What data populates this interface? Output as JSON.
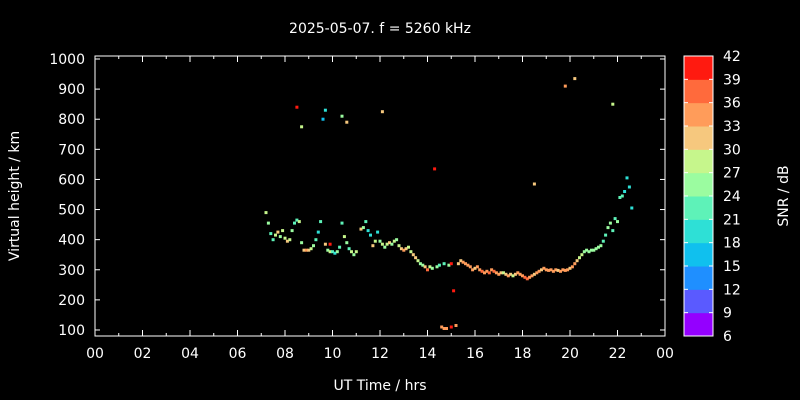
{
  "chart_data": {
    "type": "scatter",
    "title": "2025-05-07. f = 5260 kHz",
    "xlabel": "UT Time / hrs",
    "ylabel": "Virtual height / km",
    "colorbar_label": "SNR / dB",
    "xlim": [
      0,
      24
    ],
    "ylim": [
      80,
      1010
    ],
    "x_ticks": [
      "00",
      "02",
      "04",
      "06",
      "08",
      "10",
      "12",
      "14",
      "16",
      "18",
      "20",
      "22",
      "00"
    ],
    "y_ticks": [
      100,
      200,
      300,
      400,
      500,
      600,
      700,
      800,
      900,
      1000
    ],
    "color_range": [
      6,
      42
    ],
    "colorbar_ticks": [
      6,
      9,
      12,
      15,
      18,
      21,
      24,
      27,
      30,
      33,
      36,
      39,
      42
    ],
    "colorbar_colors": [
      "#9400ff",
      "#5a5aff",
      "#1f8fff",
      "#10c0ee",
      "#2ee0d6",
      "#5ef2b8",
      "#9bfca0",
      "#c6f68c",
      "#f6c87e",
      "#ff9c5a",
      "#ff6a3c",
      "#ff1a10"
    ],
    "grid": false,
    "points": [
      {
        "x": 7.2,
        "y": 490,
        "snr": 27
      },
      {
        "x": 7.3,
        "y": 455,
        "snr": 24
      },
      {
        "x": 7.4,
        "y": 420,
        "snr": 21
      },
      {
        "x": 7.5,
        "y": 400,
        "snr": 22
      },
      {
        "x": 7.6,
        "y": 415,
        "snr": 27
      },
      {
        "x": 7.7,
        "y": 425,
        "snr": 30
      },
      {
        "x": 7.8,
        "y": 410,
        "snr": 24
      },
      {
        "x": 7.9,
        "y": 430,
        "snr": 28
      },
      {
        "x": 8.0,
        "y": 405,
        "snr": 27
      },
      {
        "x": 8.1,
        "y": 395,
        "snr": 30
      },
      {
        "x": 8.2,
        "y": 400,
        "snr": 28
      },
      {
        "x": 8.3,
        "y": 430,
        "snr": 24
      },
      {
        "x": 8.4,
        "y": 455,
        "snr": 21
      },
      {
        "x": 8.5,
        "y": 465,
        "snr": 21
      },
      {
        "x": 8.6,
        "y": 460,
        "snr": 27
      },
      {
        "x": 8.7,
        "y": 390,
        "snr": 24
      },
      {
        "x": 8.8,
        "y": 365,
        "snr": 30
      },
      {
        "x": 8.9,
        "y": 365,
        "snr": 33
      },
      {
        "x": 9.0,
        "y": 365,
        "snr": 30
      },
      {
        "x": 9.1,
        "y": 370,
        "snr": 27
      },
      {
        "x": 9.2,
        "y": 380,
        "snr": 24
      },
      {
        "x": 9.3,
        "y": 400,
        "snr": 21
      },
      {
        "x": 9.4,
        "y": 425,
        "snr": 18
      },
      {
        "x": 9.5,
        "y": 460,
        "snr": 21
      },
      {
        "x": 9.7,
        "y": 385,
        "snr": 30
      },
      {
        "x": 9.8,
        "y": 365,
        "snr": 24
      },
      {
        "x": 9.9,
        "y": 360,
        "snr": 27
      },
      {
        "x": 10.0,
        "y": 360,
        "snr": 21
      },
      {
        "x": 10.1,
        "y": 355,
        "snr": 18
      },
      {
        "x": 10.2,
        "y": 360,
        "snr": 24
      },
      {
        "x": 10.3,
        "y": 375,
        "snr": 21
      },
      {
        "x": 10.4,
        "y": 455,
        "snr": 21
      },
      {
        "x": 10.5,
        "y": 410,
        "snr": 27
      },
      {
        "x": 10.6,
        "y": 390,
        "snr": 24
      },
      {
        "x": 10.7,
        "y": 370,
        "snr": 21
      },
      {
        "x": 10.8,
        "y": 360,
        "snr": 27
      },
      {
        "x": 10.9,
        "y": 350,
        "snr": 24
      },
      {
        "x": 11.0,
        "y": 360,
        "snr": 27
      },
      {
        "x": 11.2,
        "y": 435,
        "snr": 30
      },
      {
        "x": 11.3,
        "y": 440,
        "snr": 24
      },
      {
        "x": 11.4,
        "y": 460,
        "snr": 21
      },
      {
        "x": 11.5,
        "y": 430,
        "snr": 18
      },
      {
        "x": 11.6,
        "y": 415,
        "snr": 18
      },
      {
        "x": 11.7,
        "y": 380,
        "snr": 30
      },
      {
        "x": 11.8,
        "y": 395,
        "snr": 27
      },
      {
        "x": 11.9,
        "y": 425,
        "snr": 18
      },
      {
        "x": 12.0,
        "y": 395,
        "snr": 24
      },
      {
        "x": 12.1,
        "y": 385,
        "snr": 27
      },
      {
        "x": 12.2,
        "y": 375,
        "snr": 24
      },
      {
        "x": 12.3,
        "y": 385,
        "snr": 27
      },
      {
        "x": 12.4,
        "y": 390,
        "snr": 30
      },
      {
        "x": 12.5,
        "y": 385,
        "snr": 24
      },
      {
        "x": 12.6,
        "y": 395,
        "snr": 27
      },
      {
        "x": 12.7,
        "y": 400,
        "snr": 24
      },
      {
        "x": 12.8,
        "y": 380,
        "snr": 27
      },
      {
        "x": 12.9,
        "y": 370,
        "snr": 30
      },
      {
        "x": 13.0,
        "y": 365,
        "snr": 33
      },
      {
        "x": 13.1,
        "y": 370,
        "snr": 30
      },
      {
        "x": 13.2,
        "y": 375,
        "snr": 27
      },
      {
        "x": 13.3,
        "y": 360,
        "snr": 27
      },
      {
        "x": 13.4,
        "y": 350,
        "snr": 30
      },
      {
        "x": 13.5,
        "y": 340,
        "snr": 30
      },
      {
        "x": 13.6,
        "y": 330,
        "snr": 27
      },
      {
        "x": 13.7,
        "y": 320,
        "snr": 24
      },
      {
        "x": 13.8,
        "y": 315,
        "snr": 24
      },
      {
        "x": 13.9,
        "y": 310,
        "snr": 30
      },
      {
        "x": 14.0,
        "y": 300,
        "snr": 36
      },
      {
        "x": 14.1,
        "y": 310,
        "snr": 27
      },
      {
        "x": 14.2,
        "y": 305,
        "snr": 24
      },
      {
        "x": 14.4,
        "y": 310,
        "snr": 24
      },
      {
        "x": 14.5,
        "y": 315,
        "snr": 21
      },
      {
        "x": 14.7,
        "y": 320,
        "snr": 21
      },
      {
        "x": 14.9,
        "y": 315,
        "snr": 24
      },
      {
        "x": 15.3,
        "y": 320,
        "snr": 30
      },
      {
        "x": 15.4,
        "y": 330,
        "snr": 30
      },
      {
        "x": 15.5,
        "y": 325,
        "snr": 33
      },
      {
        "x": 15.6,
        "y": 320,
        "snr": 33
      },
      {
        "x": 15.7,
        "y": 315,
        "snr": 33
      },
      {
        "x": 15.8,
        "y": 310,
        "snr": 33
      },
      {
        "x": 15.9,
        "y": 300,
        "snr": 33
      },
      {
        "x": 16.0,
        "y": 305,
        "snr": 30
      },
      {
        "x": 16.1,
        "y": 310,
        "snr": 33
      },
      {
        "x": 16.2,
        "y": 300,
        "snr": 33
      },
      {
        "x": 16.3,
        "y": 295,
        "snr": 36
      },
      {
        "x": 16.4,
        "y": 290,
        "snr": 33
      },
      {
        "x": 16.5,
        "y": 295,
        "snr": 33
      },
      {
        "x": 16.6,
        "y": 290,
        "snr": 36
      },
      {
        "x": 16.7,
        "y": 300,
        "snr": 33
      },
      {
        "x": 16.8,
        "y": 295,
        "snr": 36
      },
      {
        "x": 16.9,
        "y": 290,
        "snr": 33
      },
      {
        "x": 17.0,
        "y": 285,
        "snr": 33
      },
      {
        "x": 17.1,
        "y": 290,
        "snr": 30
      },
      {
        "x": 17.2,
        "y": 290,
        "snr": 27
      },
      {
        "x": 17.3,
        "y": 285,
        "snr": 30
      },
      {
        "x": 17.4,
        "y": 280,
        "snr": 33
      },
      {
        "x": 17.5,
        "y": 285,
        "snr": 30
      },
      {
        "x": 17.6,
        "y": 280,
        "snr": 27
      },
      {
        "x": 17.7,
        "y": 285,
        "snr": 30
      },
      {
        "x": 17.8,
        "y": 290,
        "snr": 33
      },
      {
        "x": 17.9,
        "y": 285,
        "snr": 33
      },
      {
        "x": 18.0,
        "y": 280,
        "snr": 33
      },
      {
        "x": 18.1,
        "y": 275,
        "snr": 36
      },
      {
        "x": 18.2,
        "y": 270,
        "snr": 36
      },
      {
        "x": 18.3,
        "y": 275,
        "snr": 33
      },
      {
        "x": 18.4,
        "y": 280,
        "snr": 33
      },
      {
        "x": 18.5,
        "y": 285,
        "snr": 30
      },
      {
        "x": 18.6,
        "y": 290,
        "snr": 33
      },
      {
        "x": 18.7,
        "y": 295,
        "snr": 33
      },
      {
        "x": 18.8,
        "y": 300,
        "snr": 30
      },
      {
        "x": 18.9,
        "y": 305,
        "snr": 33
      },
      {
        "x": 19.0,
        "y": 300,
        "snr": 33
      },
      {
        "x": 19.1,
        "y": 298,
        "snr": 33
      },
      {
        "x": 19.2,
        "y": 300,
        "snr": 33
      },
      {
        "x": 19.3,
        "y": 295,
        "snr": 33
      },
      {
        "x": 19.4,
        "y": 300,
        "snr": 33
      },
      {
        "x": 19.5,
        "y": 298,
        "snr": 30
      },
      {
        "x": 19.6,
        "y": 295,
        "snr": 33
      },
      {
        "x": 19.7,
        "y": 300,
        "snr": 33
      },
      {
        "x": 19.8,
        "y": 298,
        "snr": 33
      },
      {
        "x": 19.9,
        "y": 300,
        "snr": 33
      },
      {
        "x": 20.0,
        "y": 305,
        "snr": 30
      },
      {
        "x": 20.1,
        "y": 310,
        "snr": 33
      },
      {
        "x": 20.2,
        "y": 320,
        "snr": 33
      },
      {
        "x": 20.3,
        "y": 330,
        "snr": 30
      },
      {
        "x": 20.4,
        "y": 340,
        "snr": 27
      },
      {
        "x": 20.5,
        "y": 350,
        "snr": 27
      },
      {
        "x": 20.6,
        "y": 360,
        "snr": 24
      },
      {
        "x": 20.7,
        "y": 365,
        "snr": 24
      },
      {
        "x": 20.8,
        "y": 360,
        "snr": 24
      },
      {
        "x": 20.9,
        "y": 365,
        "snr": 24
      },
      {
        "x": 21.0,
        "y": 365,
        "snr": 24
      },
      {
        "x": 21.1,
        "y": 370,
        "snr": 24
      },
      {
        "x": 21.2,
        "y": 375,
        "snr": 24
      },
      {
        "x": 21.3,
        "y": 380,
        "snr": 24
      },
      {
        "x": 21.4,
        "y": 395,
        "snr": 21
      },
      {
        "x": 21.5,
        "y": 415,
        "snr": 21
      },
      {
        "x": 21.6,
        "y": 440,
        "snr": 24
      },
      {
        "x": 21.7,
        "y": 455,
        "snr": 24
      },
      {
        "x": 21.8,
        "y": 430,
        "snr": 21
      },
      {
        "x": 21.9,
        "y": 470,
        "snr": 21
      },
      {
        "x": 22.0,
        "y": 460,
        "snr": 24
      },
      {
        "x": 22.1,
        "y": 540,
        "snr": 21
      },
      {
        "x": 22.2,
        "y": 545,
        "snr": 21
      },
      {
        "x": 22.3,
        "y": 560,
        "snr": 18
      },
      {
        "x": 22.4,
        "y": 605,
        "snr": 18
      },
      {
        "x": 22.5,
        "y": 575,
        "snr": 18
      },
      {
        "x": 22.6,
        "y": 505,
        "snr": 18
      },
      {
        "x": 8.5,
        "y": 840,
        "snr": 39
      },
      {
        "x": 8.7,
        "y": 775,
        "snr": 27
      },
      {
        "x": 9.6,
        "y": 800,
        "snr": 15
      },
      {
        "x": 9.7,
        "y": 830,
        "snr": 18
      },
      {
        "x": 10.4,
        "y": 810,
        "snr": 24
      },
      {
        "x": 10.6,
        "y": 790,
        "snr": 30
      },
      {
        "x": 12.1,
        "y": 825,
        "snr": 30
      },
      {
        "x": 14.3,
        "y": 635,
        "snr": 39
      },
      {
        "x": 18.5,
        "y": 585,
        "snr": 30
      },
      {
        "x": 19.8,
        "y": 910,
        "snr": 33
      },
      {
        "x": 20.2,
        "y": 935,
        "snr": 30
      },
      {
        "x": 21.8,
        "y": 850,
        "snr": 27
      },
      {
        "x": 9.9,
        "y": 385,
        "snr": 39
      },
      {
        "x": 14.6,
        "y": 110,
        "snr": 33
      },
      {
        "x": 14.7,
        "y": 105,
        "snr": 33
      },
      {
        "x": 14.8,
        "y": 105,
        "snr": 33
      },
      {
        "x": 15.0,
        "y": 110,
        "snr": 39
      },
      {
        "x": 15.2,
        "y": 115,
        "snr": 33
      },
      {
        "x": 15.1,
        "y": 230,
        "snr": 39
      },
      {
        "x": 15.0,
        "y": 320,
        "snr": 39
      }
    ]
  }
}
